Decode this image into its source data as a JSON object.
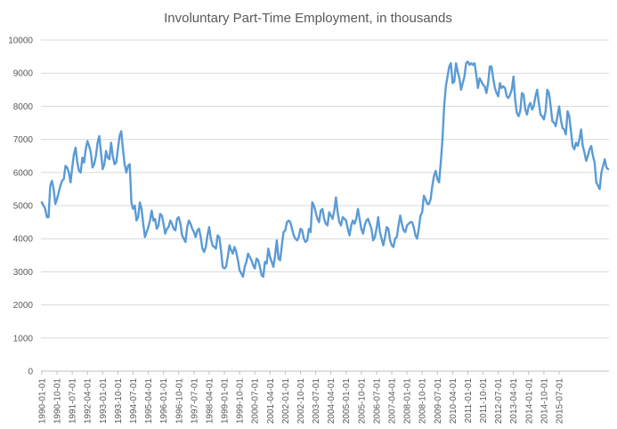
{
  "chart_data": {
    "type": "line",
    "title": "Involuntary Part-Time Employment, in thousands",
    "xlabel": "",
    "ylabel": "",
    "ylim": [
      0,
      10000
    ],
    "y_ticks": [
      0,
      1000,
      2000,
      3000,
      4000,
      5000,
      6000,
      7000,
      8000,
      9000,
      10000
    ],
    "x_ticks": [
      "1990-01-01",
      "1990-10-01",
      "1991-07-01",
      "1992-04-01",
      "1993-01-01",
      "1993-10-01",
      "1994-07-01",
      "1995-04-01",
      "1996-01-01",
      "1996-10-01",
      "1997-07-01",
      "1998-04-01",
      "1999-01-01",
      "1999-10-01",
      "2000-07-01",
      "2001-04-01",
      "2002-01-01",
      "2002-10-01",
      "2003-07-01",
      "2004-04-01",
      "2005-01-01",
      "2005-10-01",
      "2006-07-01",
      "2007-04-01",
      "2008-01-01",
      "2008-10-01",
      "2009-07-01",
      "2010-04-01",
      "2011-01-01",
      "2011-10-01",
      "2012-07-01",
      "2013-04-01",
      "2014-01-01",
      "2014-10-01",
      "2015-07-01"
    ],
    "grid": true,
    "legend": "none",
    "series_color": "#5b9bd5",
    "series": [
      {
        "start": "1990-01",
        "frequency": "monthly",
        "values": [
          5100,
          5000,
          4900,
          4650,
          4650,
          5600,
          5750,
          5500,
          5050,
          5200,
          5400,
          5600,
          5750,
          5800,
          6200,
          6150,
          6000,
          5700,
          6150,
          6550,
          6750,
          6300,
          6050,
          6000,
          6450,
          6300,
          6700,
          6950,
          6800,
          6600,
          6150,
          6250,
          6500,
          6900,
          7100,
          6600,
          6100,
          6250,
          6650,
          6450,
          6400,
          6900,
          6500,
          6250,
          6300,
          6700,
          7100,
          7250,
          6700,
          6250,
          6000,
          6200,
          6250,
          5100,
          4900,
          5000,
          4550,
          4650,
          5100,
          4900,
          4450,
          4050,
          4200,
          4350,
          4550,
          4850,
          4550,
          4600,
          4300,
          4400,
          4750,
          4700,
          4450,
          4150,
          4300,
          4350,
          4550,
          4450,
          4300,
          4250,
          4600,
          4650,
          4450,
          4100,
          4000,
          3900,
          4350,
          4550,
          4450,
          4300,
          4200,
          4050,
          4250,
          4300,
          4050,
          3700,
          3600,
          3750,
          4100,
          4350,
          4000,
          3800,
          3750,
          3700,
          4100,
          4050,
          3650,
          3150,
          3100,
          3150,
          3450,
          3800,
          3650,
          3550,
          3750,
          3600,
          3350,
          3050,
          2950,
          2850,
          3150,
          3300,
          3550,
          3450,
          3350,
          3200,
          3100,
          3400,
          3350,
          3150,
          2900,
          2850,
          3300,
          3250,
          3700,
          3450,
          3300,
          3150,
          3500,
          3950,
          3400,
          3350,
          3800,
          4200,
          4250,
          4500,
          4550,
          4500,
          4300,
          4100,
          4000,
          3950,
          4050,
          4300,
          4250,
          4000,
          3900,
          3950,
          4300,
          4200,
          5100,
          5000,
          4800,
          4600,
          4500,
          4850,
          4900,
          4600,
          4450,
          4400,
          4800,
          4700,
          4600,
          4850,
          5250,
          4800,
          4500,
          4400,
          4650,
          4600,
          4550,
          4300,
          4100,
          4400,
          4550,
          4450,
          4600,
          4900,
          4600,
          4300,
          4150,
          4400,
          4550,
          4600,
          4450,
          4300,
          3950,
          4050,
          4300,
          4650,
          4200,
          4000,
          3800,
          4050,
          4350,
          4300,
          3950,
          3800,
          3750,
          4000,
          4050,
          4400,
          4700,
          4450,
          4250,
          4200,
          4400,
          4450,
          4500,
          4500,
          4350,
          4100,
          4000,
          4300,
          4700,
          4800,
          5300,
          5200,
          5050,
          5050,
          5200,
          5600,
          5900,
          6050,
          5800,
          5700,
          6300,
          7000,
          8000,
          8600,
          8900,
          9200,
          9300,
          8700,
          8750,
          9300,
          9050,
          8850,
          8500,
          8700,
          8900,
          9300,
          9350,
          9250,
          9300,
          9250,
          9300,
          8950,
          8550,
          8850,
          8750,
          8650,
          8600,
          8400,
          8700,
          9200,
          9200,
          8850,
          8550,
          8400,
          8300,
          8700,
          8550,
          8600,
          8550,
          8300,
          8250,
          8350,
          8500,
          8900,
          8200,
          7800,
          7700,
          7850,
          8400,
          8350,
          7900,
          7750,
          8000,
          8100,
          7900,
          8000,
          8300,
          8500,
          8100,
          7750,
          7700,
          7600,
          7850,
          8500,
          8400,
          8000,
          7550,
          7500,
          7400,
          7700,
          8000,
          7600,
          7350,
          7300,
          7150,
          7850,
          7700,
          7250,
          6800,
          6700,
          6900,
          6800,
          7000,
          7300,
          6800,
          6600,
          6350,
          6500,
          6700,
          6800,
          6500,
          6300,
          5700,
          5600,
          5500,
          6000,
          6200,
          6400,
          6150,
          6100
        ]
      }
    ]
  }
}
